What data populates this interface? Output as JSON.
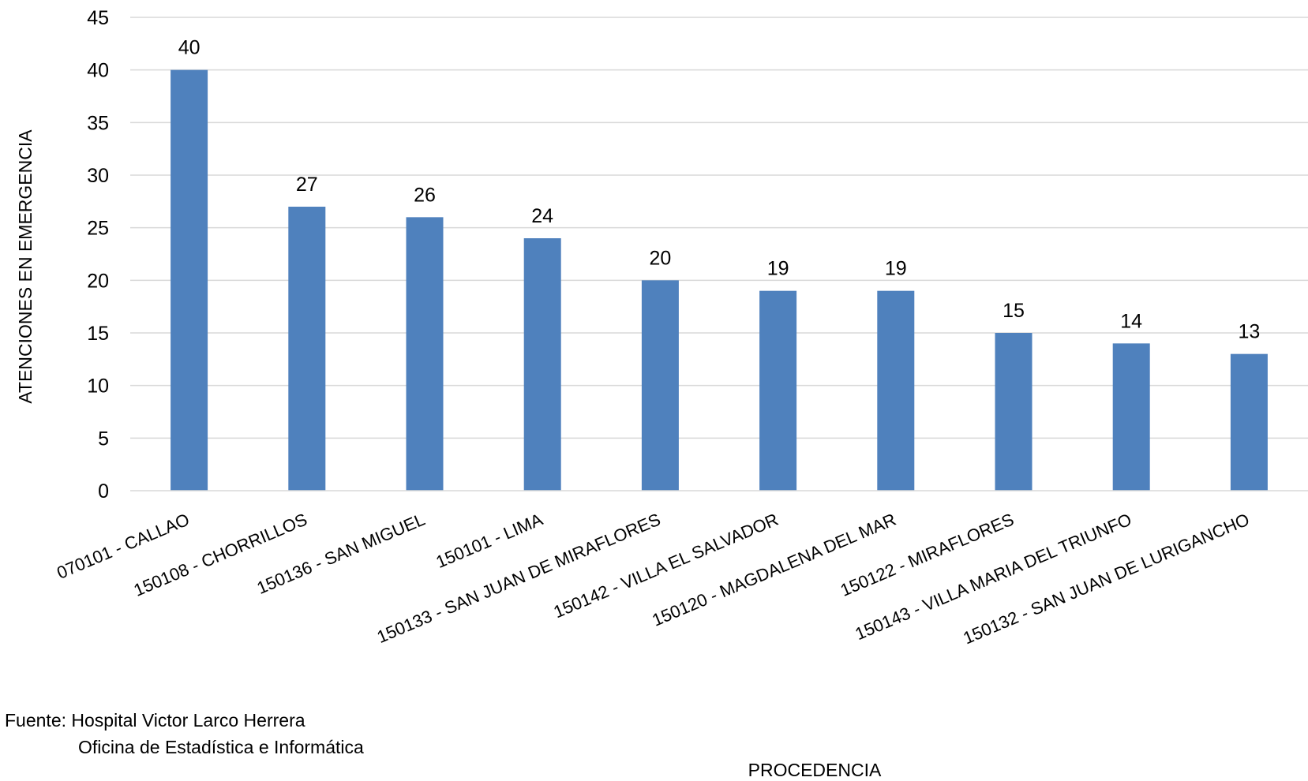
{
  "chart_data": {
    "type": "bar",
    "categories": [
      "070101 - CALLAO",
      "150108 - CHORRILLOS",
      "150136 - SAN MIGUEL",
      "150101 - LIMA",
      "150133 - SAN JUAN DE MIRAFLORES",
      "150142 - VILLA EL SALVADOR",
      "150120 - MAGDALENA DEL MAR",
      "150122 - MIRAFLORES",
      "150143 - VILLA MARIA DEL TRIUNFO",
      "150132 - SAN JUAN DE LURIGANCHO"
    ],
    "values": [
      40,
      27,
      26,
      24,
      20,
      19,
      19,
      15,
      14,
      13
    ],
    "xlabel": "PROCEDENCIA",
    "ylabel": "ATENCIONES EN EMERGENCIA",
    "ylim": [
      0,
      45
    ],
    "yticks": [
      0,
      5,
      10,
      15,
      20,
      25,
      30,
      35,
      40,
      45
    ],
    "grid": true,
    "data_labels": true,
    "bar_color": "#4f81bd",
    "grid_color": "#d9d9d9"
  },
  "source": {
    "line1": "Fuente:  Hospital Victor Larco Herrera",
    "line2": "Oficina de Estadística e Informática"
  }
}
